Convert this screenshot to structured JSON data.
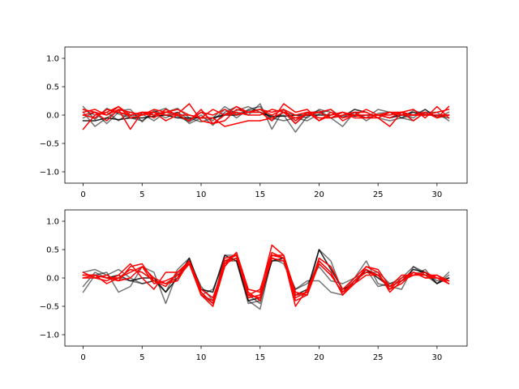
{
  "chart_data": [
    {
      "type": "line",
      "title": "",
      "xlabel": "",
      "ylabel": "",
      "xlim": [
        -1.55,
        32.55
      ],
      "ylim": [
        -1.2,
        1.2
      ],
      "xticks": [
        0,
        5,
        10,
        15,
        20,
        25,
        30
      ],
      "yticks": [
        -1.0,
        -0.5,
        0.0,
        0.5,
        1.0
      ],
      "xtick_labels": [
        "0",
        "5",
        "10",
        "15",
        "20",
        "25",
        "30"
      ],
      "ytick_labels": [
        "−1.0",
        "−0.5",
        "0.0",
        "0.5",
        "1.0"
      ],
      "grid": false,
      "x": [
        0,
        1,
        2,
        3,
        4,
        5,
        6,
        7,
        8,
        9,
        10,
        11,
        12,
        13,
        14,
        15,
        16,
        17,
        18,
        19,
        20,
        21,
        22,
        23,
        24,
        25,
        26,
        27,
        28,
        29,
        30,
        31
      ],
      "series": [
        {
          "color": "#000000",
          "opacity": 0.55,
          "values": [
            0.15,
            -0.08,
            0.12,
            0.02,
            -0.05,
            -0.1,
            0.05,
            0.12,
            -0.02,
            -0.12,
            0.0,
            -0.18,
            0.05,
            0.15,
            0.0,
            0.2,
            -0.25,
            0.1,
            -0.15,
            0.02,
            0.08,
            -0.05,
            -0.2,
            0.05,
            -0.1,
            0.03,
            0.05,
            -0.05,
            0.08,
            0.02,
            -0.02,
            -0.05
          ]
        },
        {
          "color": "#000000",
          "opacity": 0.55,
          "values": [
            0.05,
            -0.2,
            -0.05,
            0.08,
            0.1,
            -0.12,
            0.08,
            0.0,
            0.05,
            -0.15,
            -0.05,
            -0.05,
            0.15,
            0.02,
            0.08,
            0.1,
            -0.05,
            -0.1,
            -0.05,
            -0.1,
            0.02,
            0.1,
            -0.05,
            0.1,
            0.05,
            -0.05,
            -0.1,
            -0.05,
            0.0,
            0.1,
            -0.05,
            0.0
          ]
        },
        {
          "color": "#000000",
          "opacity": 0.55,
          "values": [
            -0.05,
            0.05,
            -0.15,
            0.05,
            -0.02,
            0.02,
            -0.1,
            0.05,
            0.12,
            -0.05,
            -0.12,
            -0.05,
            0.02,
            0.08,
            0.15,
            0.05,
            -0.05,
            0.0,
            -0.3,
            -0.02,
            0.05,
            -0.05,
            -0.02,
            0.1,
            0.05,
            -0.05,
            0.05,
            -0.05,
            -0.1,
            0.05,
            0.05,
            -0.1
          ]
        },
        {
          "color": "#000000",
          "opacity": 0.55,
          "values": [
            0.1,
            0.0,
            0.05,
            -0.1,
            0.05,
            0.0,
            0.05,
            -0.05,
            0.05,
            -0.08,
            0.05,
            -0.1,
            0.1,
            -0.05,
            0.1,
            0.15,
            -0.1,
            0.05,
            0.0,
            -0.05,
            0.1,
            0.05,
            -0.05,
            0.05,
            -0.05,
            0.1,
            0.05,
            0.0,
            -0.05,
            0.1,
            -0.05,
            0.05
          ]
        },
        {
          "color": "#000000",
          "opacity": 0.85,
          "values": [
            -0.1,
            -0.1,
            -0.05,
            -0.08,
            -0.05,
            -0.05,
            -0.02,
            0.0,
            -0.05,
            -0.05,
            -0.05,
            -0.05,
            0.0,
            0.0,
            0.05,
            0.05,
            -0.02,
            -0.02,
            0.0,
            0.0,
            0.0,
            0.0,
            0.05,
            -0.02,
            0.0,
            0.0,
            -0.05,
            0.0,
            0.05,
            0.0,
            0.0,
            0.0
          ]
        },
        {
          "color": "#ff0000",
          "opacity": 1.0,
          "values": [
            -0.25,
            0.0,
            0.05,
            0.15,
            -0.05,
            0.0,
            0.1,
            0.05,
            0.02,
            0.2,
            -0.1,
            -0.15,
            0.0,
            0.15,
            0.05,
            0.05,
            -0.1,
            0.2,
            0.05,
            0.1,
            -0.1,
            0.05,
            -0.05,
            0.0,
            -0.05,
            -0.05,
            -0.2,
            0.05,
            0.1,
            -0.05,
            0.15,
            -0.05
          ]
        },
        {
          "color": "#ff0000",
          "opacity": 1.0,
          "values": [
            0.05,
            0.1,
            0.0,
            0.15,
            0.0,
            0.05,
            -0.05,
            0.1,
            0.0,
            -0.1,
            0.05,
            0.0,
            0.1,
            0.0,
            0.05,
            0.1,
            0.05,
            0.1,
            0.0,
            0.05,
            0.05,
            -0.05,
            0.0,
            0.05,
            0.05,
            -0.05,
            0.05,
            0.05,
            0.0,
            0.05,
            -0.05,
            0.0
          ]
        },
        {
          "color": "#ff0000",
          "opacity": 1.0,
          "values": [
            0.0,
            -0.05,
            0.1,
            0.05,
            0.0,
            0.05,
            0.0,
            0.05,
            0.1,
            0.0,
            -0.05,
            0.1,
            0.0,
            0.05,
            0.0,
            0.0,
            0.1,
            0.05,
            -0.05,
            0.0,
            0.05,
            0.1,
            -0.1,
            0.0,
            0.1,
            0.0,
            0.0,
            0.05,
            0.0,
            0.0,
            0.05,
            0.1
          ]
        },
        {
          "color": "#ff0000",
          "opacity": 1.0,
          "values": [
            0.1,
            0.05,
            -0.1,
            0.1,
            -0.25,
            0.05,
            0.05,
            -0.1,
            0.0,
            -0.1,
            0.1,
            -0.15,
            -0.1,
            0.1,
            0.05,
            0.1,
            0.0,
            0.1,
            -0.1,
            0.05,
            -0.05,
            -0.05,
            0.05,
            -0.05,
            -0.05,
            0.0,
            -0.05,
            0.05,
            -0.1,
            0.05,
            -0.05,
            0.15
          ]
        },
        {
          "color": "#ff0000",
          "opacity": 1.0,
          "values": [
            0.0,
            0.05,
            0.0,
            0.1,
            0.05,
            0.0,
            0.05,
            0.0,
            0.0,
            0.0,
            -0.05,
            -0.05,
            -0.2,
            -0.15,
            -0.1,
            -0.1,
            -0.05,
            0.05,
            -0.15,
            0.05,
            -0.1,
            0.0,
            0.05,
            0.0,
            0.0,
            0.0,
            0.05,
            0.0,
            0.0,
            0.0,
            0.0,
            0.0
          ]
        }
      ]
    },
    {
      "type": "line",
      "title": "",
      "xlabel": "",
      "ylabel": "",
      "xlim": [
        -1.55,
        32.55
      ],
      "ylim": [
        -1.2,
        1.2
      ],
      "xticks": [
        0,
        5,
        10,
        15,
        20,
        25,
        30
      ],
      "yticks": [
        -1.0,
        -0.5,
        0.0,
        0.5,
        1.0
      ],
      "xtick_labels": [
        "0",
        "5",
        "10",
        "15",
        "20",
        "25",
        "30"
      ],
      "ytick_labels": [
        "−1.0",
        "−0.5",
        "0.0",
        "0.5",
        "1.0"
      ],
      "grid": false,
      "x": [
        0,
        1,
        2,
        3,
        4,
        5,
        6,
        7,
        8,
        9,
        10,
        11,
        12,
        13,
        14,
        15,
        16,
        17,
        18,
        19,
        20,
        21,
        22,
        23,
        24,
        25,
        26,
        27,
        28,
        29,
        30,
        31
      ],
      "series": [
        {
          "color": "#000000",
          "opacity": 0.55,
          "values": [
            -0.25,
            0.05,
            0.1,
            -0.25,
            -0.15,
            0.2,
            0.1,
            -0.45,
            0.1,
            0.3,
            -0.3,
            -0.2,
            0.3,
            0.35,
            -0.4,
            -0.55,
            0.35,
            0.25,
            -0.2,
            -0.1,
            0.2,
            -0.05,
            -0.1,
            0.0,
            0.3,
            -0.1,
            -0.15,
            -0.2,
            0.2,
            0.05,
            -0.1,
            0.1
          ]
        },
        {
          "color": "#000000",
          "opacity": 0.55,
          "values": [
            0.1,
            0.15,
            0.05,
            0.15,
            0.0,
            -0.1,
            -0.05,
            -0.25,
            0.15,
            0.35,
            -0.3,
            -0.45,
            0.4,
            0.4,
            -0.3,
            -0.45,
            0.4,
            0.35,
            -0.3,
            -0.3,
            0.5,
            0.3,
            -0.25,
            0.0,
            0.1,
            0.1,
            -0.1,
            -0.05,
            0.05,
            0.15,
            -0.1,
            0.05
          ]
        },
        {
          "color": "#000000",
          "opacity": 0.55,
          "values": [
            -0.15,
            0.1,
            0.0,
            0.0,
            -0.05,
            -0.1,
            -0.05,
            -0.1,
            0.05,
            0.3,
            -0.15,
            -0.4,
            0.3,
            0.3,
            -0.45,
            -0.4,
            0.3,
            0.3,
            -0.2,
            -0.05,
            -0.05,
            -0.25,
            -0.3,
            -0.05,
            0.15,
            -0.15,
            -0.1,
            0.0,
            0.2,
            0.1,
            -0.05,
            0.0
          ]
        },
        {
          "color": "#000000",
          "opacity": 0.85,
          "values": [
            0.05,
            0.05,
            0.0,
            0.05,
            -0.05,
            0.0,
            0.0,
            -0.25,
            0.0,
            0.35,
            -0.2,
            -0.25,
            0.4,
            0.3,
            -0.4,
            -0.35,
            0.3,
            0.35,
            -0.3,
            -0.2,
            0.5,
            0.15,
            -0.2,
            -0.1,
            0.15,
            0.0,
            -0.15,
            -0.05,
            0.15,
            0.1,
            -0.1,
            0.0
          ]
        },
        {
          "color": "#ff0000",
          "opacity": 1.0,
          "values": [
            0.1,
            0.0,
            -0.05,
            0.05,
            0.25,
            0.0,
            -0.2,
            0.1,
            0.1,
            0.25,
            -0.3,
            -0.5,
            0.2,
            0.45,
            -0.3,
            -0.2,
            0.45,
            0.35,
            -0.5,
            -0.2,
            0.3,
            0.1,
            -0.3,
            -0.1,
            0.2,
            0.1,
            -0.25,
            -0.05,
            0.1,
            0.05,
            0.05,
            -0.1
          ]
        },
        {
          "color": "#ff0000",
          "opacity": 1.0,
          "values": [
            0.0,
            0.05,
            0.0,
            -0.05,
            0.2,
            0.25,
            -0.05,
            -0.15,
            0.1,
            0.3,
            -0.25,
            -0.45,
            0.35,
            0.4,
            -0.35,
            -0.3,
            0.4,
            0.4,
            -0.35,
            -0.25,
            0.25,
            0.05,
            -0.25,
            -0.05,
            0.15,
            0.05,
            -0.2,
            0.0,
            0.1,
            0.0,
            0.0,
            -0.05
          ]
        },
        {
          "color": "#ff0000",
          "opacity": 1.0,
          "values": [
            0.05,
            0.05,
            -0.1,
            0.0,
            0.1,
            0.2,
            0.0,
            -0.1,
            -0.05,
            0.3,
            -0.2,
            -0.35,
            0.25,
            0.45,
            -0.2,
            -0.25,
            0.58,
            0.4,
            -0.25,
            -0.3,
            0.35,
            0.2,
            -0.2,
            0.0,
            0.2,
            0.15,
            -0.15,
            0.05,
            0.05,
            0.1,
            0.0,
            -0.05
          ]
        },
        {
          "color": "#ff0000",
          "opacity": 1.0,
          "values": [
            0.0,
            0.0,
            0.05,
            -0.05,
            0.0,
            0.2,
            -0.1,
            -0.05,
            0.05,
            0.25,
            -0.3,
            -0.4,
            0.3,
            0.4,
            -0.3,
            -0.35,
            0.35,
            0.3,
            -0.3,
            -0.25,
            0.3,
            0.1,
            -0.3,
            -0.05,
            0.1,
            0.05,
            -0.2,
            -0.1,
            0.1,
            0.0,
            0.05,
            -0.05
          ]
        },
        {
          "color": "#ff0000",
          "opacity": 1.0,
          "values": [
            0.05,
            0.05,
            0.0,
            0.0,
            0.15,
            0.1,
            -0.05,
            -0.1,
            0.0,
            0.25,
            -0.25,
            -0.45,
            0.25,
            0.35,
            -0.25,
            -0.4,
            0.4,
            0.35,
            -0.4,
            -0.3,
            0.25,
            0.05,
            -0.25,
            -0.1,
            0.05,
            0.05,
            -0.15,
            -0.05,
            0.05,
            0.05,
            0.0,
            -0.1
          ]
        }
      ]
    }
  ]
}
